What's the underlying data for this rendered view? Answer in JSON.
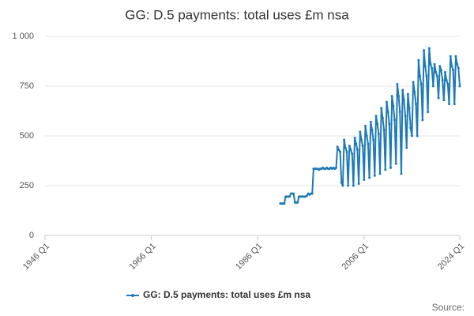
{
  "chart_data": {
    "type": "line",
    "title": "GG: D.5 payments: total uses £m nsa",
    "source": "Source:",
    "xlim": [
      1946,
      2024
    ],
    "xticks": [
      {
        "value": 1946,
        "label": "1946 Q1"
      },
      {
        "value": 1966,
        "label": "1966 Q1"
      },
      {
        "value": 1986,
        "label": "1986 Q1"
      },
      {
        "value": 2006,
        "label": "2006 Q1"
      },
      {
        "value": 2024,
        "label": "2024 Q1"
      }
    ],
    "ylim": [
      0,
      1000
    ],
    "yticks": [
      0,
      250,
      500,
      750,
      {
        "value": 1000,
        "label": "1 000"
      }
    ],
    "grid": true,
    "legend": "bottom",
    "x": [
      1990.25,
      1990.5,
      1990.75,
      1991,
      1991.25,
      1991.5,
      1991.75,
      1992,
      1992.25,
      1992.5,
      1992.75,
      1993,
      1993.25,
      1993.5,
      1993.75,
      1994,
      1994.25,
      1994.5,
      1994.75,
      1995,
      1995.25,
      1995.5,
      1995.75,
      1996,
      1996.25,
      1996.5,
      1996.75,
      1997,
      1997.25,
      1997.5,
      1997.75,
      1998,
      1998.25,
      1998.5,
      1998.75,
      1999,
      1999.25,
      1999.5,
      1999.75,
      2000,
      2000.25,
      2000.5,
      2000.75,
      2001,
      2001.25,
      2001.5,
      2001.75,
      2002,
      2002.25,
      2002.5,
      2002.75,
      2003,
      2003.25,
      2003.5,
      2003.75,
      2004,
      2004.25,
      2004.5,
      2004.75,
      2005,
      2005.25,
      2005.5,
      2005.75,
      2006,
      2006.25,
      2006.5,
      2006.75,
      2007,
      2007.25,
      2007.5,
      2007.75,
      2008,
      2008.25,
      2008.5,
      2008.75,
      2009,
      2009.25,
      2009.5,
      2009.75,
      2010,
      2010.25,
      2010.5,
      2010.75,
      2011,
      2011.25,
      2011.5,
      2011.75,
      2012,
      2012.25,
      2012.5,
      2012.75,
      2013,
      2013.25,
      2013.5,
      2013.75,
      2014,
      2014.25,
      2014.5,
      2014.75,
      2015,
      2015.25,
      2015.5,
      2015.75,
      2016,
      2016.25,
      2016.5,
      2016.75,
      2017,
      2017.25,
      2017.5,
      2017.75,
      2018,
      2018.25,
      2018.5,
      2018.75,
      2019,
      2019.25,
      2019.5,
      2019.75,
      2020,
      2020.25,
      2020.5,
      2020.75,
      2021,
      2021.25,
      2021.5,
      2021.75,
      2022,
      2022.25,
      2022.5,
      2022.75,
      2023,
      2023.25,
      2023.5,
      2023.75,
      2024
    ],
    "series": [
      {
        "name": "GG: D.5 payments: total uses £m nsa",
        "color": "#1f7ab5",
        "values": [
          160,
          160,
          160,
          160,
          195,
          195,
          195,
          195,
          210,
          210,
          210,
          165,
          165,
          165,
          195,
          195,
          195,
          195,
          195,
          195,
          200,
          210,
          205,
          210,
          210,
          335,
          335,
          335,
          335,
          330,
          335,
          335,
          340,
          335,
          335,
          340,
          335,
          335,
          340,
          335,
          340,
          335,
          340,
          445,
          430,
          420,
          265,
          250,
          480,
          440,
          420,
          250,
          450,
          430,
          410,
          250,
          490,
          460,
          430,
          260,
          520,
          480,
          450,
          280,
          550,
          500,
          460,
          290,
          570,
          530,
          480,
          300,
          600,
          560,
          510,
          310,
          640,
          590,
          530,
          330,
          670,
          620,
          560,
          340,
          700,
          650,
          580,
          360,
          760,
          700,
          620,
          310,
          730,
          680,
          600,
          440,
          710,
          640,
          540,
          500,
          770,
          720,
          660,
          500,
          880,
          800,
          760,
          580,
          930,
          850,
          800,
          620,
          940,
          860,
          840,
          750,
          860,
          820,
          800,
          690,
          850,
          830,
          780,
          680,
          820,
          780,
          760,
          660,
          900,
          850,
          830,
          660,
          900,
          860,
          840,
          750
        ]
      }
    ]
  }
}
